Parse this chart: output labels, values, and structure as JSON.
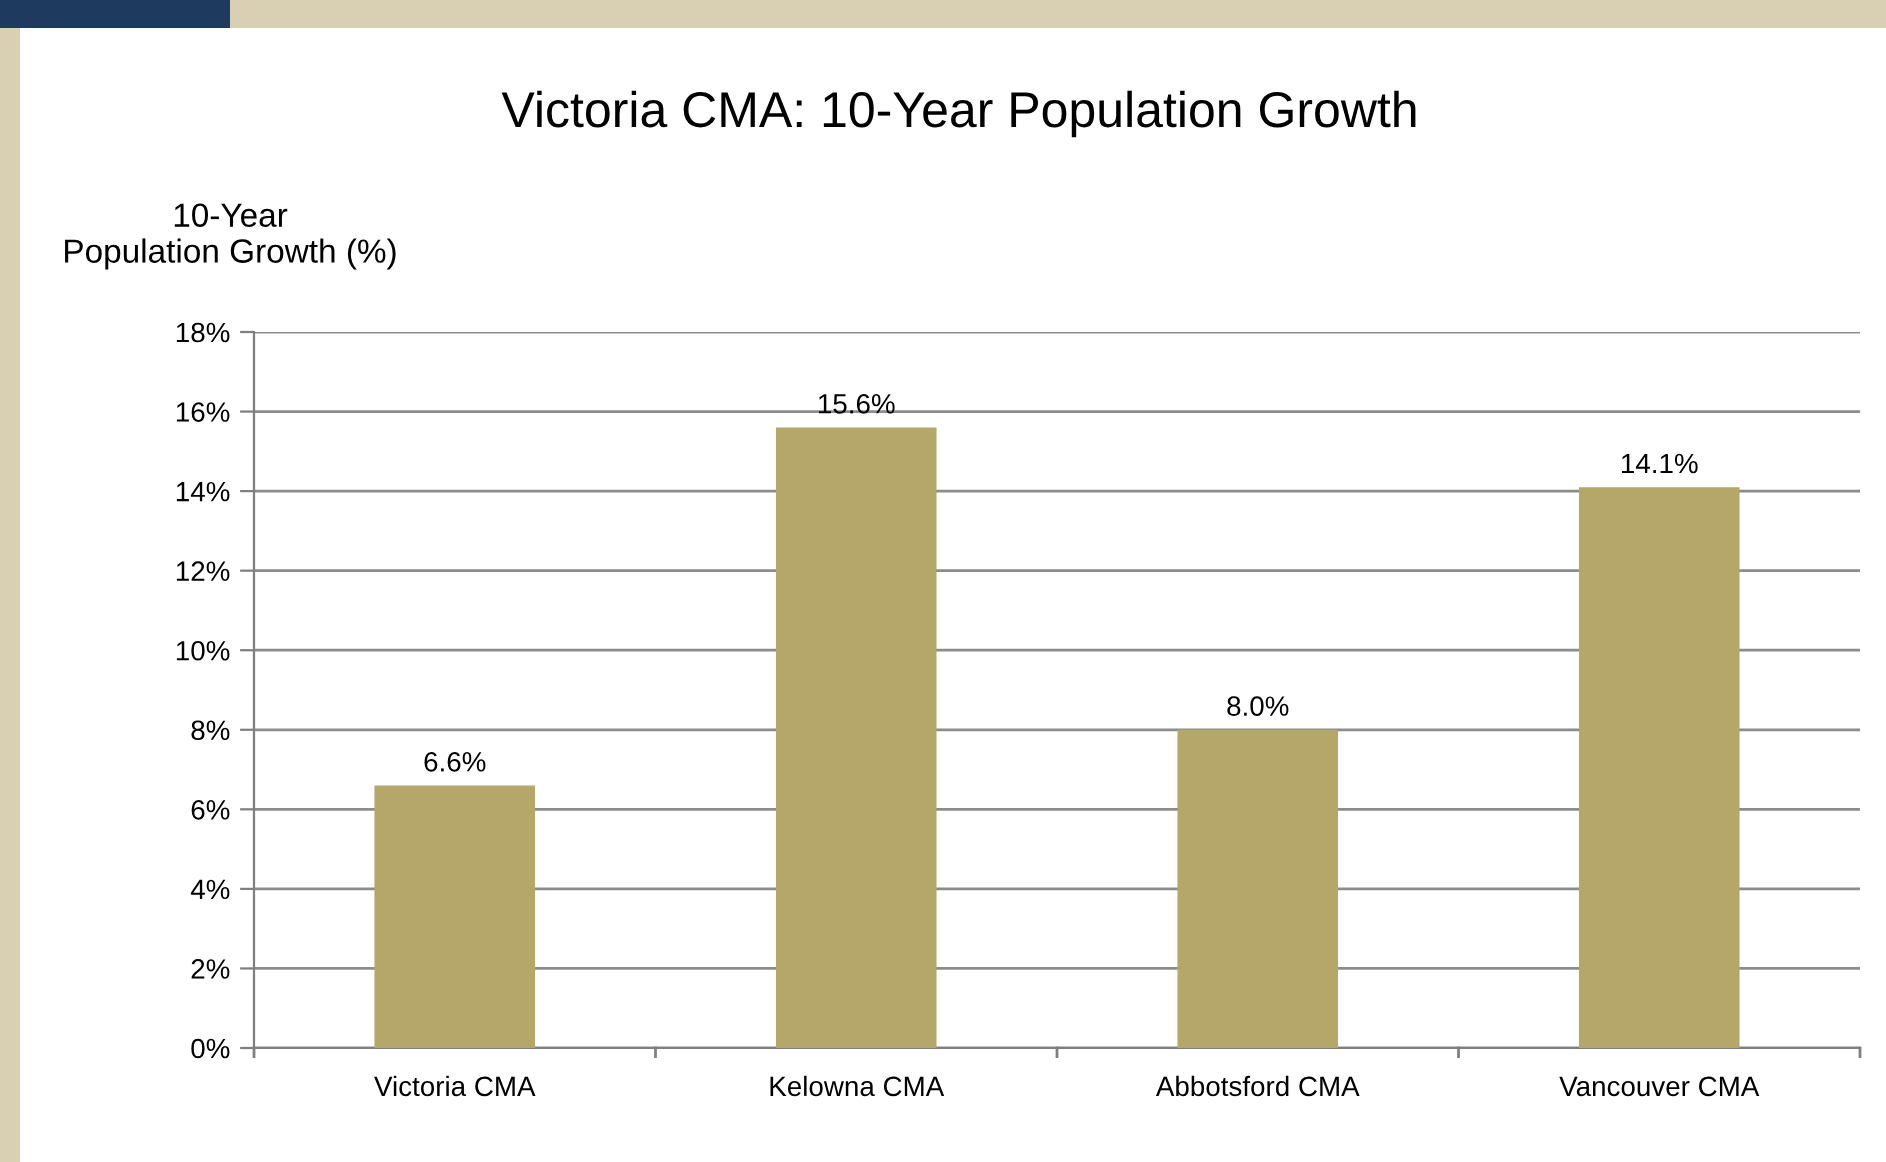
{
  "chart_data": {
    "type": "bar",
    "title": "Victoria CMA: 10-Year Population Growth",
    "ylabel": "10-Year\nPopulation Growth (%)",
    "categories": [
      "Victoria CMA",
      "Kelowna CMA",
      "Abbotsford CMA",
      "Vancouver CMA"
    ],
    "values": [
      6.6,
      15.6,
      8.0,
      14.1
    ],
    "color": "#b5a66a",
    "value_labels": [
      "6.6%",
      "15.6%",
      "8.0%",
      "14.1%"
    ],
    "ylim": [
      0,
      18
    ],
    "yticks": [
      {
        "value": 0,
        "label": "0%"
      },
      {
        "value": 2,
        "label": "2%"
      },
      {
        "value": 4,
        "label": "4%"
      },
      {
        "value": 6,
        "label": "6%"
      },
      {
        "value": 8,
        "label": "8%"
      },
      {
        "value": 10,
        "label": "10%"
      },
      {
        "value": 12,
        "label": "12%"
      },
      {
        "value": 14,
        "label": "14%"
      },
      {
        "value": 16,
        "label": "16%"
      },
      {
        "value": 18,
        "label": "18%"
      }
    ],
    "grid": "y",
    "legend": false
  }
}
